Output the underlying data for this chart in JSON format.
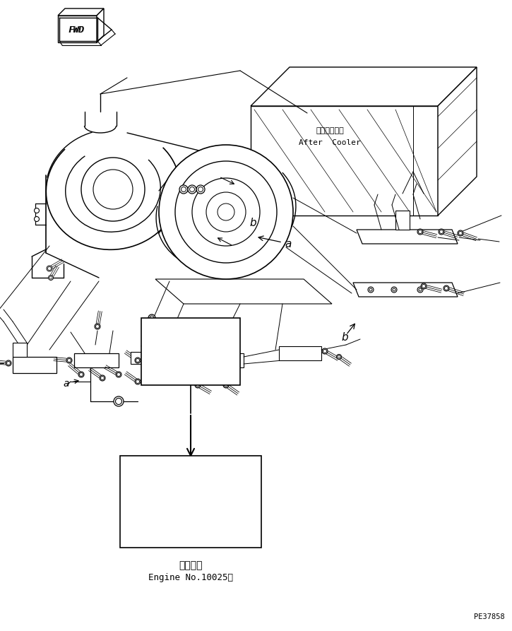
{
  "bg_color": "#ffffff",
  "line_color": "#000000",
  "fig_width": 7.25,
  "fig_height": 8.93,
  "dpi": 100,
  "part_number": "PE37858",
  "fwd_label": "FWD",
  "after_cooler_jp": "アフタクーラ",
  "after_cooler_en": "After  Cooler",
  "label_a": "a",
  "label_b": "b",
  "bottom_jp": "適用号機",
  "bottom_en": "Engine No.10025～"
}
